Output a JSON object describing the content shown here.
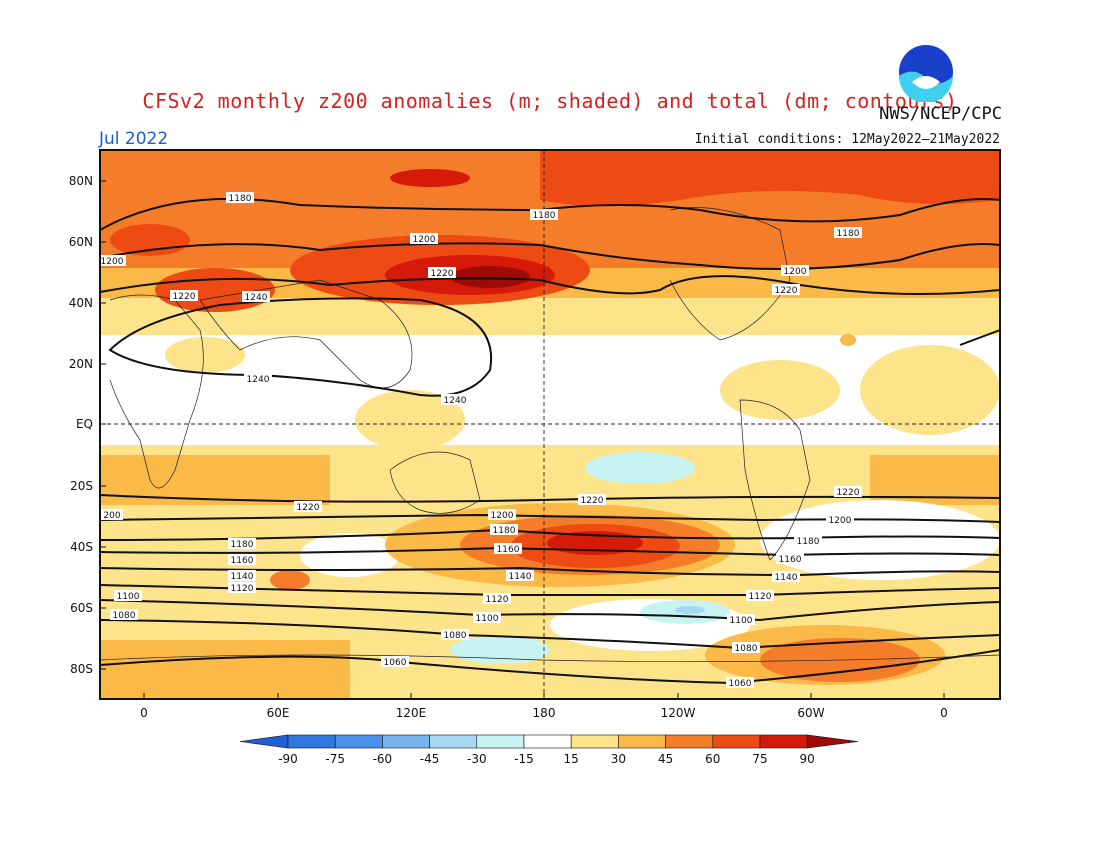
{
  "title": "CFSv2 monthly z200 anomalies (m; shaded) and total (dm; contours)",
  "month": "Jul 2022",
  "initial_conditions": "Initial conditions: 12May2022–21May2022",
  "agency": "NWS/NCEP/CPC",
  "logo_text": "NOAA",
  "lat_ticks": [
    "80N",
    "60N",
    "40N",
    "20N",
    "EQ",
    "20S",
    "40S",
    "60S",
    "80S"
  ],
  "lon_ticks": [
    "0",
    "60E",
    "120E",
    "180",
    "120W",
    "60W",
    "0"
  ],
  "colorbar": {
    "labels": [
      "-90",
      "-75",
      "-60",
      "-45",
      "-30",
      "-15",
      "15",
      "30",
      "45",
      "60",
      "75",
      "90"
    ],
    "colors": [
      "#1f5fd6",
      "#2f78e0",
      "#4b91ea",
      "#78b4f0",
      "#a6d8f3",
      "#c8f3f3",
      "#ffffff",
      "#fde38a",
      "#fbb948",
      "#f57d2a",
      "#ee4a14",
      "#d61a0a",
      "#9e0b06"
    ]
  },
  "contour_labels": [
    "1180",
    "1180",
    "1180",
    "1200",
    "1200",
    "1200",
    "1220",
    "1220",
    "1220",
    "1240",
    "1240",
    "1240",
    "1220",
    "200",
    "1220",
    "1220",
    "1200",
    "1200",
    "1180",
    "1180",
    "1180",
    "1160",
    "1160",
    "1160",
    "1140",
    "1140",
    "1140",
    "1120",
    "1120",
    "1120",
    "1100",
    "1100",
    "1100",
    "1080",
    "1080",
    "1080",
    "1060",
    "1060"
  ]
}
